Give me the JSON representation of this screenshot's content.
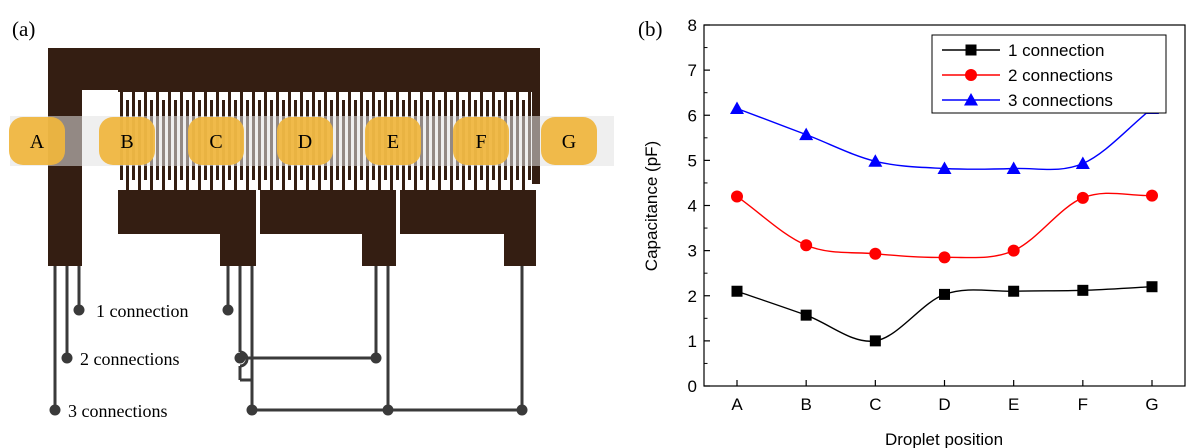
{
  "panel_a": {
    "label": "(a)",
    "droplets": [
      "A",
      "B",
      "C",
      "D",
      "E",
      "F",
      "G"
    ],
    "connections": [
      "1 connection",
      "2 connections",
      "3 connections"
    ],
    "colors": {
      "electrode": "#341e12",
      "droplet": "#f0b63d",
      "channel": "#e2e2e2",
      "wire": "#3a3a3a"
    }
  },
  "panel_b": {
    "label": "(b)",
    "chart_data": {
      "type": "line",
      "categories": [
        "A",
        "B",
        "C",
        "D",
        "E",
        "F",
        "G"
      ],
      "series": [
        {
          "name": "1 connection",
          "color": "#000000",
          "marker": "square",
          "values": [
            2.1,
            1.57,
            1.0,
            2.03,
            2.1,
            2.12,
            2.2
          ]
        },
        {
          "name": "2 connections",
          "color": "#ff0000",
          "marker": "circle",
          "values": [
            4.2,
            3.12,
            2.93,
            2.85,
            3.0,
            4.17,
            4.22
          ]
        },
        {
          "name": "3 connections",
          "color": "#0000ff",
          "marker": "triangle",
          "values": [
            6.15,
            5.57,
            4.98,
            4.82,
            4.82,
            4.93,
            6.15
          ]
        }
      ],
      "xlabel": "Droplet position",
      "ylabel": "Capacitance (pF)",
      "ylim": [
        0,
        8
      ],
      "yticks": [
        "0",
        "1",
        "2",
        "3",
        "4",
        "5",
        "6",
        "7",
        "8"
      ],
      "grid": false,
      "legend": "top-right"
    }
  }
}
